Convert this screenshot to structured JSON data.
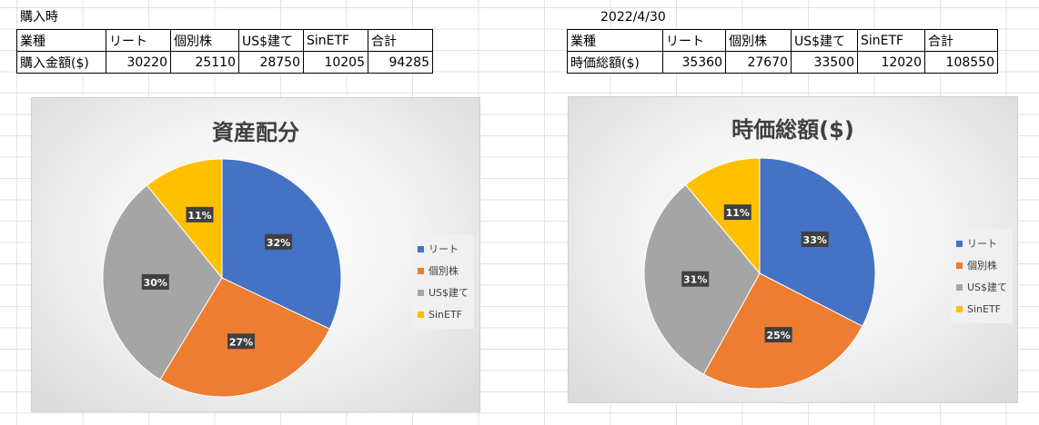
{
  "sheet": {
    "purchase_label": "購入時",
    "date_label": "2022/4/30",
    "purchase_table": {
      "headers": [
        "業種",
        "リート",
        "個別株",
        "US$建て",
        "SinETF",
        "合計"
      ],
      "row": [
        "購入金額($)",
        "30220",
        "25110",
        "28750",
        "10205",
        "94285"
      ]
    },
    "market_table": {
      "headers": [
        "業種",
        "リート",
        "個別株",
        "US$建て",
        "SinETF",
        "合計"
      ],
      "row": [
        "時価総額($)",
        "35360",
        "27670",
        "33500",
        "12020",
        "108550"
      ]
    }
  },
  "colors": {
    "リート": "#4472c4",
    "個別株": "#ed7d31",
    "US$建て": "#a5a5a5",
    "SinETF": "#ffc000"
  },
  "chart_data": [
    {
      "type": "pie",
      "title": "資産配分",
      "categories": [
        "リート",
        "個別株",
        "US$建て",
        "SinETF"
      ],
      "values": [
        30220,
        25110,
        28750,
        10205
      ],
      "data_labels": [
        "32%",
        "27%",
        "30%",
        "11%"
      ],
      "legend": "right"
    },
    {
      "type": "pie",
      "title": "時価総額($)",
      "categories": [
        "リート",
        "個別株",
        "US$建て",
        "SinETF"
      ],
      "values": [
        35360,
        27670,
        33500,
        12020
      ],
      "data_labels": [
        "33%",
        "25%",
        "31%",
        "11%"
      ],
      "legend": "right"
    }
  ]
}
